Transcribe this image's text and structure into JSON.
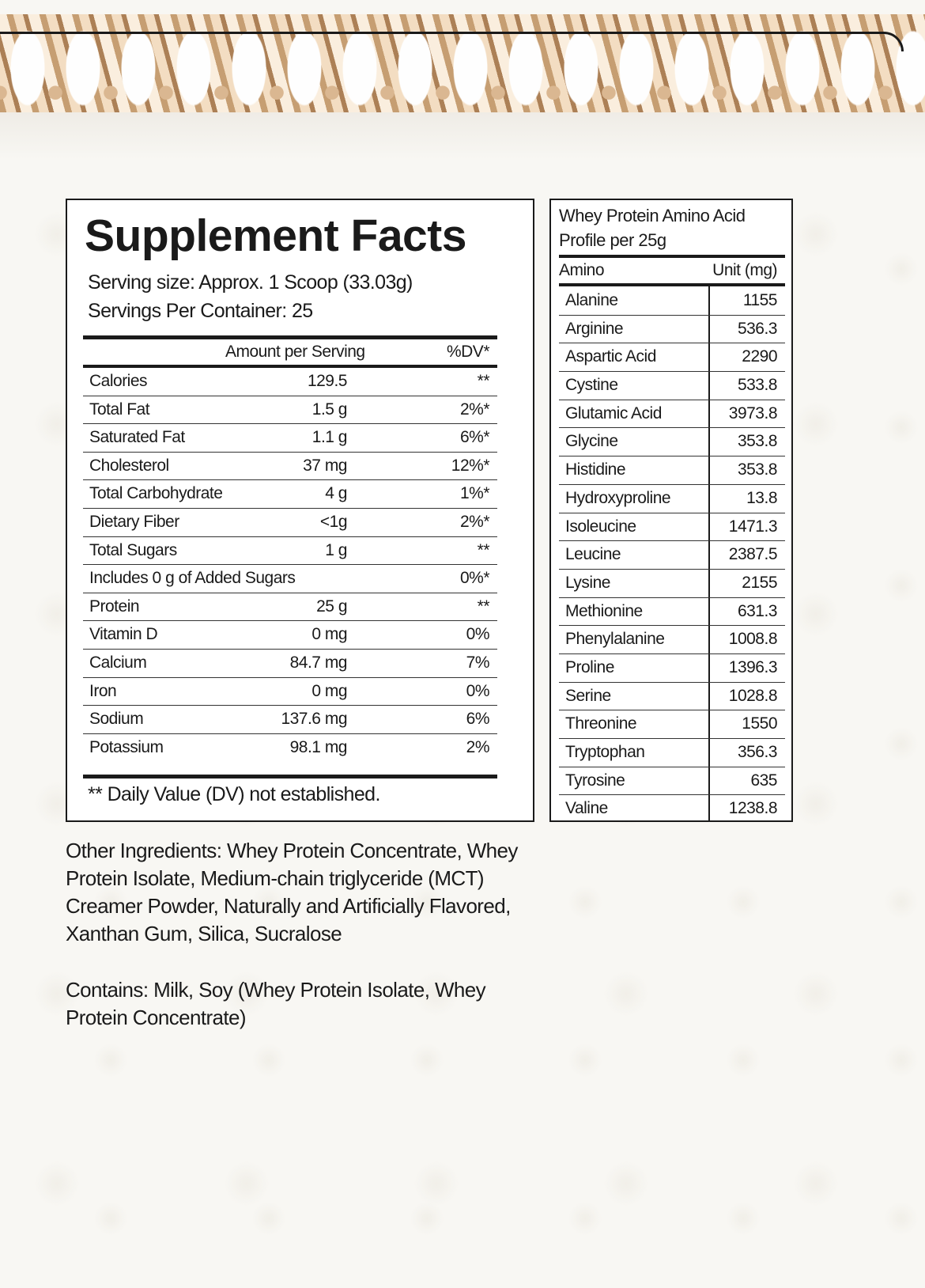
{
  "supplement_facts": {
    "title": "Supplement Facts",
    "serving_size": "Serving size: Approx. 1 Scoop (33.03g)",
    "servings_per_container": "Servings Per Container: 25",
    "headers": {
      "amount": "Amount per Serving",
      "dv": "%DV*"
    },
    "rows": [
      {
        "name": "Calories",
        "amount": "129.5",
        "dv": "**"
      },
      {
        "name": "Total Fat",
        "amount": "1.5 g",
        "dv": "2%*"
      },
      {
        "name": "Saturated Fat",
        "amount": "1.1 g",
        "dv": "6%*"
      },
      {
        "name": "Cholesterol",
        "amount": "37 mg",
        "dv": "12%*"
      },
      {
        "name": "Total Carbohydrate",
        "amount": "4 g",
        "dv": "1%*"
      },
      {
        "name": "Dietary Fiber",
        "amount": "<1g",
        "dv": "2%*"
      },
      {
        "name": "Total Sugars",
        "amount": "1 g",
        "dv": "**"
      },
      {
        "name": "Includes 0 g of Added Sugars",
        "amount": "",
        "dv": "0%*"
      },
      {
        "name": "Protein",
        "amount": "25 g",
        "dv": "**"
      },
      {
        "name": "Vitamin D",
        "amount": "0 mg",
        "dv": "0%"
      },
      {
        "name": "Calcium",
        "amount": "84.7 mg",
        "dv": "7%"
      },
      {
        "name": "Iron",
        "amount": "0 mg",
        "dv": "0%"
      },
      {
        "name": "Sodium",
        "amount": "137.6 mg",
        "dv": "6%"
      },
      {
        "name": "Potassium",
        "amount": "98.1 mg",
        "dv": "2%"
      }
    ],
    "footnote": "** Daily Value (DV) not established."
  },
  "amino_profile": {
    "title_line1": "Whey Protein Amino Acid",
    "title_line2": "Profile per 25g",
    "headers": {
      "amino": "Amino",
      "unit": "Unit (mg)"
    },
    "rows": [
      {
        "name": "Alanine",
        "value": "1155"
      },
      {
        "name": "Arginine",
        "value": "536.3"
      },
      {
        "name": "Aspartic Acid",
        "value": "2290"
      },
      {
        "name": "Cystine",
        "value": "533.8"
      },
      {
        "name": "Glutamic Acid",
        "value": "3973.8"
      },
      {
        "name": "Glycine",
        "value": "353.8"
      },
      {
        "name": "Histidine",
        "value": "353.8"
      },
      {
        "name": "Hydroxyproline",
        "value": "13.8"
      },
      {
        "name": "Isoleucine",
        "value": "1471.3"
      },
      {
        "name": "Leucine",
        "value": "2387.5"
      },
      {
        "name": "Lysine",
        "value": "2155"
      },
      {
        "name": "Methionine",
        "value": "631.3"
      },
      {
        "name": "Phenylalanine",
        "value": "1008.8"
      },
      {
        "name": "Proline",
        "value": "1396.3"
      },
      {
        "name": "Serine",
        "value": "1028.8"
      },
      {
        "name": "Threonine",
        "value": "1550"
      },
      {
        "name": "Tryptophan",
        "value": "356.3"
      },
      {
        "name": "Tyrosine",
        "value": "635"
      },
      {
        "name": "Valine",
        "value": "1238.8"
      }
    ]
  },
  "other_ingredients": "Other Ingredients: Whey Protein Concentrate, Whey Protein Isolate, Medium-chain triglyceride (MCT) Creamer Powder, Naturally and Artificially Flavored, Xanthan Gum, Silica, Sucralose",
  "contains": "Contains: Milk, Soy (Whey Protein Isolate, Whey Protein Concentrate)",
  "colors": {
    "banner_tan": "#c49a6c",
    "banner_light": "#f3dcc0",
    "ink": "#1a1a1a",
    "background": "#f8f7f3"
  }
}
